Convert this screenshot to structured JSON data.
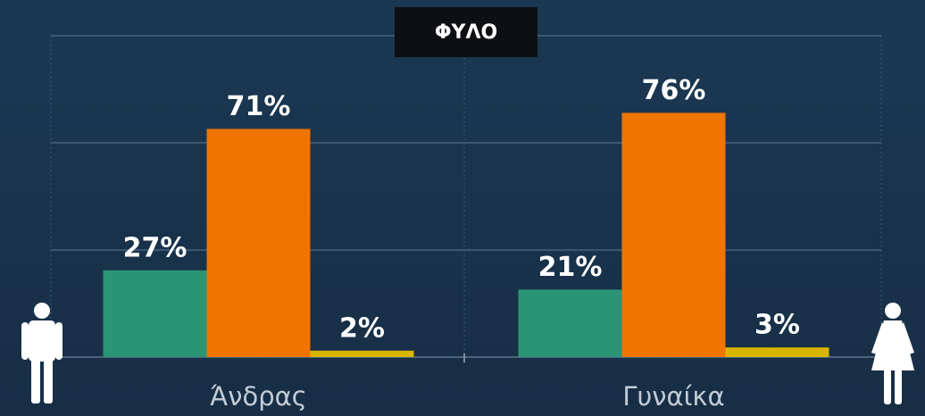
{
  "chart_data": {
    "type": "bar",
    "title": "ΦΥΛΟ",
    "categories": [
      "Άνδρας",
      "Γυναίκα"
    ],
    "series": [
      {
        "color": "#2a9474",
        "values": [
          27,
          21
        ],
        "value_labels": [
          "27%",
          "21%"
        ]
      },
      {
        "color": "#f07400",
        "values": [
          71,
          76
        ],
        "value_labels": [
          "71%",
          "76%"
        ]
      },
      {
        "color": "#d9b500",
        "values": [
          2,
          3
        ],
        "value_labels": [
          "2%",
          "3%"
        ]
      }
    ],
    "ylim": [
      0,
      100
    ],
    "yticks": [
      0,
      33.3,
      66.7,
      100
    ],
    "grid": true
  }
}
